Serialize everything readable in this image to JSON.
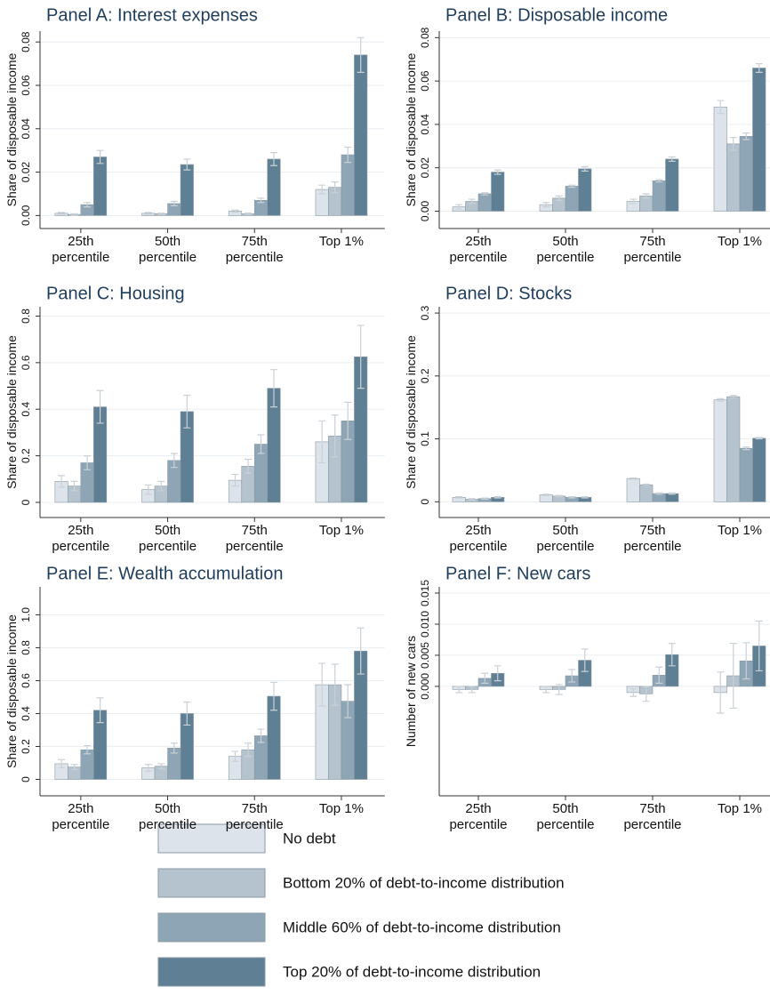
{
  "chart_data": [
    {
      "type": "bar",
      "title": "Panel A: Interest expenses",
      "y_label": "Share of disposable income",
      "categories": [
        "25th percentile",
        "50th percentile",
        "75th percentile",
        "Top 1%"
      ],
      "ylim": [
        -0.006,
        0.085
      ],
      "yticks": [
        {
          "value": 0,
          "label": "0.00"
        },
        {
          "value": 0.02,
          "label": "0.02"
        },
        {
          "value": 0.04,
          "label": "0.04"
        },
        {
          "value": 0.06,
          "label": "0.06"
        },
        {
          "value": 0.08,
          "label": "0.08"
        }
      ],
      "grid": true,
      "series": [
        {
          "name": "No debt",
          "color": "#dde3ea",
          "values": [
            0.001,
            0.001,
            0.002,
            0.012
          ],
          "errors": [
            0.0004,
            0.0004,
            0.0005,
            0.002
          ]
        },
        {
          "name": "Bottom 20% of debt-to-income distribution",
          "color": "#b4c3cd",
          "values": [
            0.0005,
            0.0008,
            0.0008,
            0.013
          ],
          "errors": [
            0.0003,
            0.0003,
            0.0003,
            0.0025
          ]
        },
        {
          "name": "Middle 60% of debt-to-income distribution",
          "color": "#8ea5b5",
          "values": [
            0.005,
            0.0055,
            0.007,
            0.028
          ],
          "errors": [
            0.001,
            0.001,
            0.001,
            0.0035
          ]
        },
        {
          "name": "Top 20% of debt-to-income distribution",
          "color": "#5f7f95",
          "values": [
            0.027,
            0.0235,
            0.026,
            0.074
          ],
          "errors": [
            0.003,
            0.0025,
            0.003,
            0.008
          ]
        }
      ]
    },
    {
      "type": "bar",
      "title": "Panel B: Disposable income",
      "y_label": "Share of disposable income",
      "categories": [
        "25th percentile",
        "50th percentile",
        "75th percentile",
        "Top 1%"
      ],
      "ylim": [
        -0.008,
        0.083
      ],
      "yticks": [
        {
          "value": 0,
          "label": "0.00"
        },
        {
          "value": 0.02,
          "label": "0.02"
        },
        {
          "value": 0.04,
          "label": "0.04"
        },
        {
          "value": 0.06,
          "label": "0.06"
        },
        {
          "value": 0.08,
          "label": "0.08"
        }
      ],
      "grid": true,
      "series": [
        {
          "color": "#dde3ea",
          "values": [
            0.002,
            0.003,
            0.0045,
            0.048
          ],
          "errors": [
            0.001,
            0.001,
            0.001,
            0.003
          ]
        },
        {
          "color": "#b4c3cd",
          "values": [
            0.0045,
            0.006,
            0.007,
            0.031
          ],
          "errors": [
            0.001,
            0.001,
            0.001,
            0.003
          ]
        },
        {
          "color": "#8ea5b5",
          "values": [
            0.008,
            0.0115,
            0.014,
            0.0345
          ],
          "errors": [
            0.0005,
            0.0005,
            0.0005,
            0.0015
          ]
        },
        {
          "color": "#5f7f95",
          "values": [
            0.018,
            0.0195,
            0.024,
            0.066
          ],
          "errors": [
            0.001,
            0.001,
            0.001,
            0.002
          ]
        }
      ]
    },
    {
      "type": "bar",
      "title": "Panel C: Housing",
      "y_label": "Share of disposable income",
      "categories": [
        "25th percentile",
        "50th percentile",
        "75th percentile",
        "Top 1%"
      ],
      "ylim": [
        -0.065,
        0.84
      ],
      "yticks": [
        0,
        0.2,
        0.4,
        0.6,
        0.8
      ],
      "grid": true,
      "series": [
        {
          "color": "#dde3ea",
          "values": [
            0.09,
            0.055,
            0.095,
            0.26
          ],
          "errors": [
            0.025,
            0.02,
            0.025,
            0.09
          ]
        },
        {
          "color": "#b4c3cd",
          "values": [
            0.07,
            0.07,
            0.155,
            0.285
          ],
          "errors": [
            0.02,
            0.02,
            0.03,
            0.09
          ]
        },
        {
          "color": "#8ea5b5",
          "values": [
            0.17,
            0.18,
            0.25,
            0.35
          ],
          "errors": [
            0.03,
            0.03,
            0.04,
            0.08
          ]
        },
        {
          "color": "#5f7f95",
          "values": [
            0.41,
            0.39,
            0.49,
            0.625
          ],
          "errors": [
            0.07,
            0.07,
            0.08,
            0.135
          ]
        }
      ]
    },
    {
      "type": "bar",
      "title": "Panel D: Stocks",
      "y_label": "Share of disposable income",
      "categories": [
        "25th percentile",
        "50th percentile",
        "75th percentile",
        "Top 1%"
      ],
      "ylim": [
        -0.025,
        0.31
      ],
      "yticks": [
        0,
        0.1,
        0.2,
        0.3
      ],
      "grid": true,
      "series": [
        {
          "color": "#dde3ea",
          "values": [
            0.007,
            0.011,
            0.037,
            0.162
          ],
          "errors": [
            0.001,
            0.001,
            0.001,
            0.002
          ]
        },
        {
          "color": "#b4c3cd",
          "values": [
            0.004,
            0.009,
            0.027,
            0.167
          ],
          "errors": [
            0.001,
            0.001,
            0.001,
            0.002
          ]
        },
        {
          "color": "#8ea5b5",
          "values": [
            0.005,
            0.007,
            0.013,
            0.085
          ],
          "errors": [
            0.001,
            0.001,
            0.001,
            0.002
          ]
        },
        {
          "color": "#5f7f95",
          "values": [
            0.007,
            0.007,
            0.013,
            0.101
          ],
          "errors": [
            0.001,
            0.001,
            0.001,
            0.001
          ]
        }
      ]
    },
    {
      "type": "bar",
      "title": "Panel E: Wealth accumulation",
      "y_label": "Share of disposable income",
      "categories": [
        "25th percentile",
        "50th percentile",
        "75th percentile",
        "Top 1%"
      ],
      "ylim": [
        -0.1,
        1.17
      ],
      "yticks": [
        0,
        0.2,
        0.4,
        0.6,
        0.8,
        {
          "value": 1,
          "label": "1.0"
        }
      ],
      "grid": true,
      "series": [
        {
          "color": "#dde3ea",
          "values": [
            0.095,
            0.07,
            0.14,
            0.575
          ],
          "errors": [
            0.025,
            0.02,
            0.03,
            0.13
          ]
        },
        {
          "color": "#b4c3cd",
          "values": [
            0.075,
            0.08,
            0.18,
            0.575
          ],
          "errors": [
            0.015,
            0.015,
            0.04,
            0.125
          ]
        },
        {
          "color": "#8ea5b5",
          "values": [
            0.18,
            0.19,
            0.265,
            0.475
          ],
          "errors": [
            0.025,
            0.03,
            0.04,
            0.1
          ]
        },
        {
          "color": "#5f7f95",
          "values": [
            0.42,
            0.4,
            0.505,
            0.78
          ],
          "errors": [
            0.075,
            0.07,
            0.085,
            0.14
          ]
        }
      ]
    },
    {
      "type": "bar",
      "title": "Panel F: New cars",
      "y_label": "Number of new cars",
      "categories": [
        "25th percentile",
        "50th percentile",
        "75th percentile",
        "Top 1%"
      ],
      "ylim": [
        -0.0176,
        0.016
      ],
      "yticks": [
        {
          "value": 0,
          "label": "0.000"
        },
        {
          "value": 0.005,
          "label": "0.005"
        },
        {
          "value": 0.01,
          "label": "0.010"
        },
        {
          "value": 0.015,
          "label": "0.015"
        }
      ],
      "grid": true,
      "series": [
        {
          "color": "#dde3ea",
          "values": [
            -0.0005,
            -0.0005,
            -0.001,
            -0.001
          ],
          "errors": [
            0.0005,
            0.0005,
            0.0006,
            0.0033
          ]
        },
        {
          "color": "#b4c3cd",
          "values": [
            -0.0005,
            -0.0005,
            -0.0012,
            0.0017
          ],
          "errors": [
            0.0005,
            0.0008,
            0.0012,
            0.0052
          ]
        },
        {
          "color": "#8ea5b5",
          "values": [
            0.0013,
            0.0017,
            0.0018,
            0.0041
          ],
          "errors": [
            0.0008,
            0.001,
            0.0013,
            0.0029
          ]
        },
        {
          "color": "#5f7f95",
          "values": [
            0.0021,
            0.0042,
            0.0051,
            0.0065
          ],
          "errors": [
            0.0012,
            0.0018,
            0.0018,
            0.004
          ]
        }
      ]
    }
  ]
}
